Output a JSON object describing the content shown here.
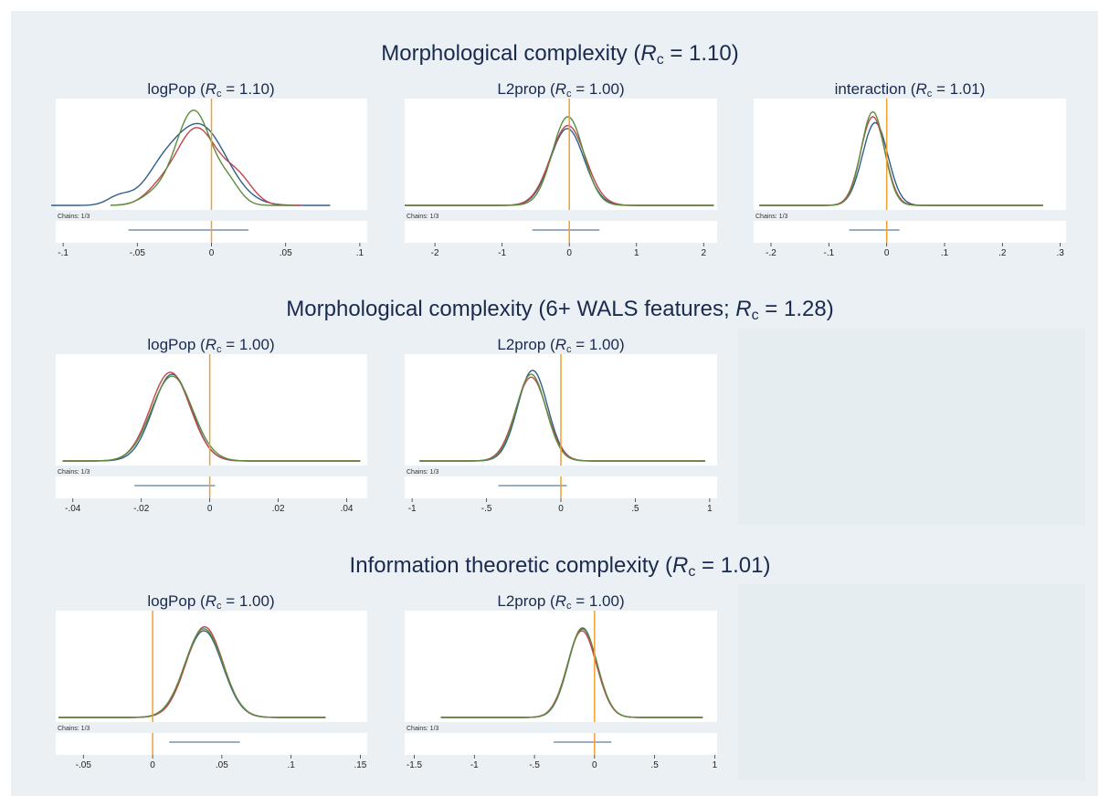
{
  "figure": {
    "background": "#eaf0f3",
    "plot_bg": "#ffffff",
    "title_color": "#1a2a4f",
    "zero_line_color": "#f0a030",
    "chain_colors": [
      "#2e5f8a",
      "#c0454f",
      "#5c8d3c"
    ],
    "ci_color": "#2e5f8a"
  },
  "sections": [
    {
      "title_prefix": "Morphological complexity  (",
      "title_rc": "R",
      "title_sub": "c",
      "title_suffix": " = 1.10)"
    },
    {
      "title_prefix": "Morphological complexity (6+ WALS features; ",
      "title_rc": "R",
      "title_sub": "c",
      "title_suffix": " = 1.28)"
    },
    {
      "title_prefix": "Information theoretic complexity (",
      "title_rc": "R",
      "title_sub": "c",
      "title_suffix": " = 1.01)"
    }
  ],
  "chart_data": [
    {
      "type": "line",
      "section": 0,
      "title_prefix": "logPop (",
      "title_rc": "R",
      "title_sub": "c",
      "title_suffix": " = 1.10)",
      "chains_label": "Chains: 1/3",
      "xlim": [
        -0.105,
        0.105
      ],
      "ticks": [
        -0.1,
        -0.05,
        0,
        0.05,
        0.1
      ],
      "tick_labels": [
        "-.1",
        "-.05",
        "0",
        ".05",
        ".1"
      ],
      "zero_line": 0,
      "ci": [
        -0.056,
        0.025
      ],
      "series": [
        {
          "color": "#2e5f8a",
          "range": [
            -0.108,
            0.08
          ],
          "components": [
            [
              -0.062,
              0.008,
              0.09
            ],
            [
              -0.035,
              0.012,
              0.22
            ],
            [
              -0.008,
              0.018,
              0.81
            ]
          ]
        },
        {
          "color": "#c0454f",
          "range": [
            -0.068,
            0.06
          ],
          "components": [
            [
              -0.036,
              0.01,
              0.12
            ],
            [
              -0.01,
              0.014,
              0.78
            ],
            [
              0.018,
              0.01,
              0.25
            ]
          ]
        },
        {
          "color": "#5c8d3c",
          "range": [
            -0.068,
            0.055
          ],
          "components": [
            [
              -0.038,
              0.01,
              0.1
            ],
            [
              -0.012,
              0.012,
              0.96
            ],
            [
              0.012,
              0.008,
              0.18
            ]
          ]
        }
      ]
    },
    {
      "type": "line",
      "section": 0,
      "title_prefix": "L2prop (",
      "title_rc": "R",
      "title_sub": "c",
      "title_suffix": " = 1.00)",
      "chains_label": "Chains: 1/3",
      "xlim": [
        -2.45,
        2.2
      ],
      "ticks": [
        -2,
        -1,
        0,
        1,
        2
      ],
      "tick_labels": [
        "-2",
        "-1",
        "0",
        "1",
        "2"
      ],
      "zero_line": 0,
      "ci": [
        -0.55,
        0.45
      ],
      "series": [
        {
          "color": "#2e5f8a",
          "range": [
            -2.45,
            2.15
          ],
          "components": [
            [
              -0.03,
              0.25,
              0.78
            ]
          ]
        },
        {
          "color": "#c0454f",
          "range": [
            -2.45,
            2.15
          ],
          "components": [
            [
              -0.02,
              0.26,
              0.81
            ]
          ]
        },
        {
          "color": "#5c8d3c",
          "range": [
            -2.45,
            2.15
          ],
          "components": [
            [
              -0.02,
              0.23,
              0.9
            ]
          ]
        }
      ]
    },
    {
      "type": "line",
      "section": 0,
      "title_prefix": "interaction (",
      "title_rc": "R",
      "title_sub": "c",
      "title_suffix": " = 1.01)",
      "chains_label": "Chains: 1/3",
      "xlim": [
        -0.23,
        0.31
      ],
      "ticks": [
        -0.2,
        -0.1,
        0,
        0.1,
        0.2,
        0.3
      ],
      "tick_labels": [
        "-.2",
        "-.1",
        "0",
        ".1",
        ".2",
        ".3"
      ],
      "zero_line": 0,
      "ci": [
        -0.065,
        0.022
      ],
      "series": [
        {
          "color": "#2e5f8a",
          "range": [
            -0.22,
            0.27
          ],
          "components": [
            [
              -0.02,
              0.022,
              0.84
            ]
          ]
        },
        {
          "color": "#c0454f",
          "range": [
            -0.22,
            0.27
          ],
          "components": [
            [
              -0.024,
              0.021,
              0.9
            ]
          ]
        },
        {
          "color": "#5c8d3c",
          "range": [
            -0.22,
            0.27
          ],
          "components": [
            [
              -0.024,
              0.02,
              0.95
            ]
          ]
        }
      ]
    },
    {
      "type": "line",
      "section": 1,
      "title_prefix": "logPop (",
      "title_rc": "R",
      "title_sub": "c",
      "title_suffix": " = 1.00)",
      "chains_label": "Chains: 1/3",
      "xlim": [
        -0.045,
        0.046
      ],
      "ticks": [
        -0.04,
        -0.02,
        0,
        0.02,
        0.04
      ],
      "tick_labels": [
        "-.04",
        "-.02",
        "0",
        ".02",
        ".04"
      ],
      "zero_line": 0,
      "ci": [
        -0.022,
        0.0015
      ],
      "series": [
        {
          "color": "#2e5f8a",
          "range": [
            -0.043,
            0.044
          ],
          "components": [
            [
              -0.011,
              0.0056,
              0.88
            ]
          ]
        },
        {
          "color": "#c0454f",
          "range": [
            -0.043,
            0.044
          ],
          "components": [
            [
              -0.0115,
              0.0058,
              0.9
            ]
          ]
        },
        {
          "color": "#5c8d3c",
          "range": [
            -0.043,
            0.044
          ],
          "components": [
            [
              -0.011,
              0.006,
              0.86
            ]
          ]
        }
      ]
    },
    {
      "type": "line",
      "section": 1,
      "title_prefix": "L2prop (",
      "title_rc": "R",
      "title_sub": "c",
      "title_suffix": " = 1.00)",
      "chains_label": "Chains: 1/3",
      "xlim": [
        -1.05,
        1.05
      ],
      "ticks": [
        -1,
        -0.5,
        0,
        0.5,
        1
      ],
      "tick_labels": [
        "-1",
        "-.5",
        "0",
        ".5",
        "1"
      ],
      "zero_line": 0,
      "ci": [
        -0.42,
        0.04
      ],
      "series": [
        {
          "color": "#2e5f8a",
          "range": [
            -0.95,
            0.97
          ],
          "components": [
            [
              -0.19,
              0.1,
              0.92
            ]
          ]
        },
        {
          "color": "#c0454f",
          "range": [
            -0.95,
            0.97
          ],
          "components": [
            [
              -0.2,
              0.105,
              0.85
            ]
          ]
        },
        {
          "color": "#5c8d3c",
          "range": [
            -0.95,
            0.97
          ],
          "components": [
            [
              -0.2,
              0.1,
              0.88
            ]
          ]
        }
      ]
    },
    {
      "type": "line",
      "section": 2,
      "title_prefix": "logPop (",
      "title_rc": "R",
      "title_sub": "c",
      "title_suffix": " = 1.00)",
      "chains_label": "Chains: 1/3",
      "xlim": [
        -0.07,
        0.155
      ],
      "ticks": [
        -0.05,
        0,
        0.05,
        0.1,
        0.15
      ],
      "tick_labels": [
        "-.05",
        "0",
        ".05",
        ".1",
        ".15"
      ],
      "zero_line": 0,
      "ci": [
        0.012,
        0.063
      ],
      "series": [
        {
          "color": "#2e5f8a",
          "range": [
            -0.068,
            0.125
          ],
          "components": [
            [
              0.037,
              0.0135,
              0.88
            ]
          ]
        },
        {
          "color": "#c0454f",
          "range": [
            -0.068,
            0.125
          ],
          "components": [
            [
              0.0375,
              0.0133,
              0.92
            ]
          ]
        },
        {
          "color": "#5c8d3c",
          "range": [
            -0.068,
            0.125
          ],
          "components": [
            [
              0.037,
              0.0137,
              0.9
            ]
          ]
        }
      ]
    },
    {
      "type": "line",
      "section": 2,
      "title_prefix": "L2prop (",
      "title_rc": "R",
      "title_sub": "c",
      "title_suffix": " = 1.00)",
      "chains_label": "Chains: 1/3",
      "xlim": [
        -1.58,
        1.02
      ],
      "ticks": [
        -1.5,
        -1,
        -0.5,
        0,
        0.5,
        1
      ],
      "tick_labels": [
        "-1.5",
        "-1",
        "-.5",
        "0",
        ".5",
        "1"
      ],
      "zero_line": 0,
      "ci": [
        -0.34,
        0.14
      ],
      "series": [
        {
          "color": "#2e5f8a",
          "range": [
            -1.28,
            0.9
          ],
          "components": [
            [
              -0.1,
              0.12,
              0.9
            ]
          ]
        },
        {
          "color": "#c0454f",
          "range": [
            -1.28,
            0.9
          ],
          "components": [
            [
              -0.105,
              0.122,
              0.88
            ]
          ]
        },
        {
          "color": "#5c8d3c",
          "range": [
            -1.28,
            0.9
          ],
          "components": [
            [
              -0.1,
              0.121,
              0.91
            ]
          ]
        }
      ]
    }
  ]
}
